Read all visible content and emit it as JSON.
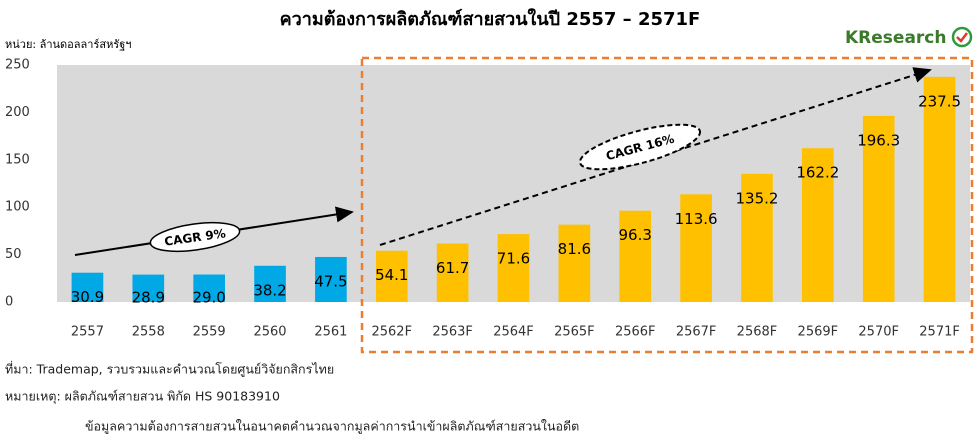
{
  "chart_data": {
    "type": "bar",
    "title": "ความต้องการผลิตภัณฑ์สายสวนในปี 2557 – 2571F",
    "unit_label": "หน่วย: ล้านดอลลาร์สหรัฐฯ",
    "logo": "KResearch",
    "categories": [
      "2557",
      "2558",
      "2559",
      "2560",
      "2561",
      "2562F",
      "2563F",
      "2564F",
      "2565F",
      "2566F",
      "2567F",
      "2568F",
      "2569F",
      "2570F",
      "2571F"
    ],
    "values": [
      30.9,
      28.9,
      29.0,
      38.2,
      47.5,
      54.1,
      61.7,
      71.6,
      81.6,
      96.3,
      113.6,
      135.2,
      162.2,
      196.3,
      237.5
    ],
    "value_labels": [
      "30.9",
      "28.9",
      "29.0",
      "38.2",
      "47.5",
      "54.1",
      "61.7",
      "71.6",
      "81.6",
      "96.3",
      "113.6",
      "135.2",
      "162.2",
      "196.3",
      "237.5"
    ],
    "colors": [
      "#00a8e6",
      "#00a8e6",
      "#00a8e6",
      "#00a8e6",
      "#00a8e6",
      "#ffc000",
      "#ffc000",
      "#ffc000",
      "#ffc000",
      "#ffc000",
      "#ffc000",
      "#ffc000",
      "#ffc000",
      "#ffc000",
      "#ffc000"
    ],
    "ylim": [
      0,
      250
    ],
    "yticks": [
      0,
      50,
      100,
      150,
      200,
      250
    ],
    "annotations": [
      "CAGR 9%",
      "CAGR 16%"
    ],
    "notes": [
      "ที่มา: Trademap, รวบรวมและคำนวณโดยศูนย์วิจัยกสิกรไทย",
      "หมายเหตุ: ผลิตภัณฑ์สายสวน พิกัด HS 90183910",
      "ข้อมูลความต้องการสายสวนในอนาคตคำนวณจากมูลค่าการนำเข้าผลิตภัณฑ์สายสวนในอดีต"
    ]
  }
}
